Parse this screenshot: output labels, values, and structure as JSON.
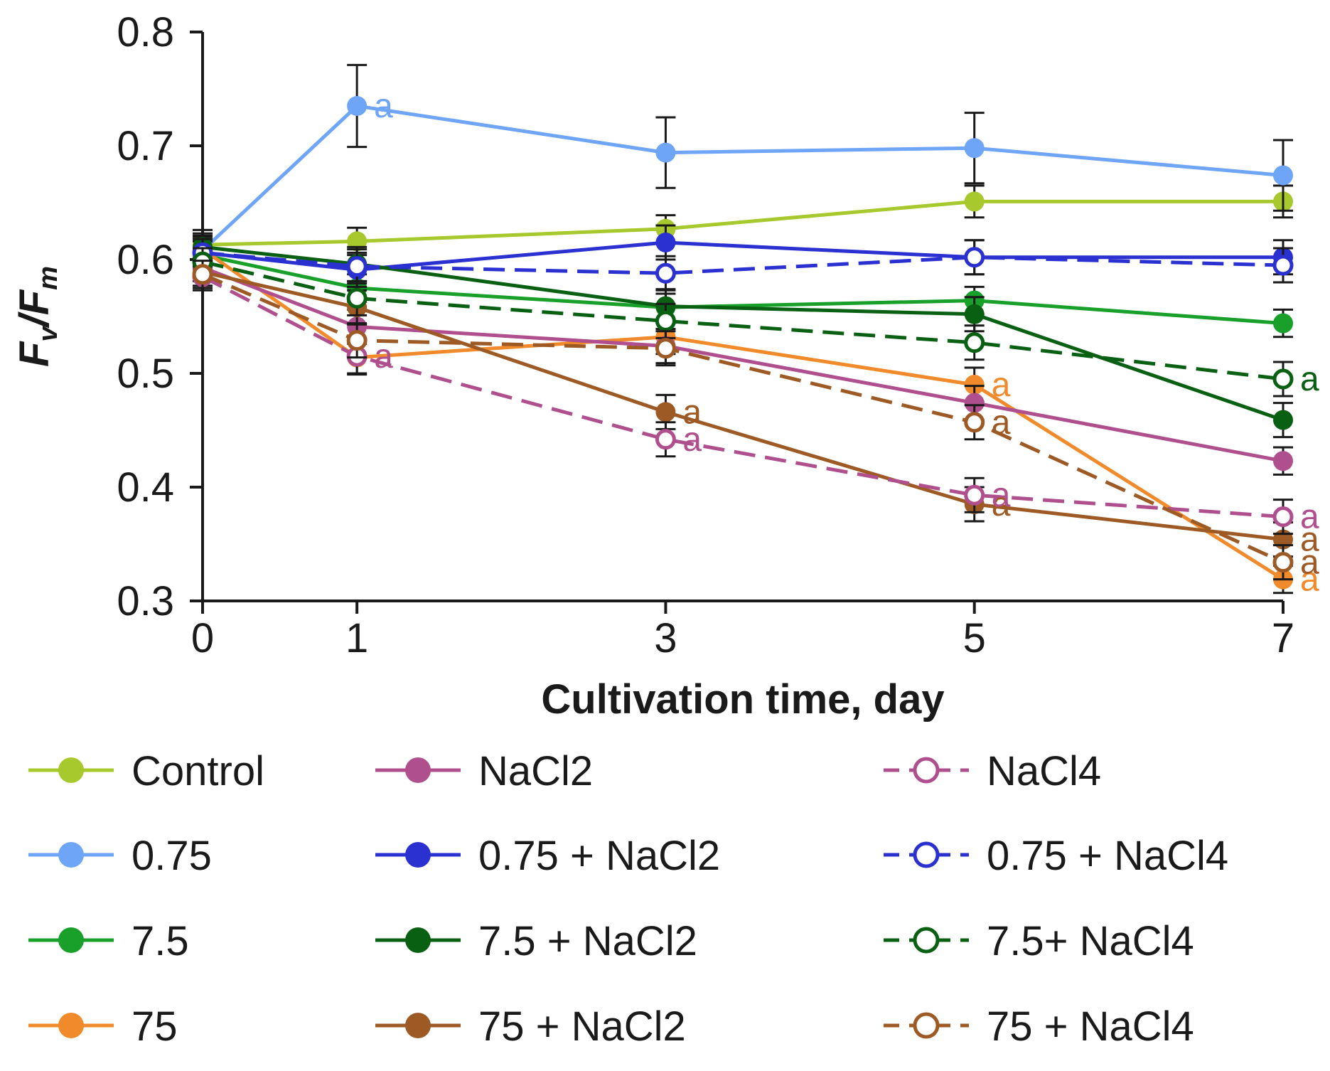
{
  "chart_data": {
    "type": "line",
    "title": "",
    "xlabel": "Cultivation time, day",
    "ylabel": {
      "main1": "F",
      "sub1": "v",
      "slash": "/",
      "main2": "F",
      "sub2": "m"
    },
    "x": [
      0,
      1,
      3,
      5,
      7
    ],
    "x_tick_labels": [
      "0",
      "1",
      "3",
      "5",
      "7"
    ],
    "ylim": [
      0.3,
      0.8
    ],
    "y_ticks": [
      0.3,
      0.4,
      0.5,
      0.6,
      0.7,
      0.8
    ],
    "y_tick_labels": [
      "0.3",
      "0.4",
      "0.5",
      "0.6",
      "0.7",
      "0.8"
    ],
    "grid": false,
    "legend_position": "bottom",
    "series": [
      {
        "name": "Control",
        "color": "#a8c92e",
        "dashed": false,
        "hollow": false,
        "values": [
          0.613,
          0.616,
          0.627,
          0.651,
          0.651
        ],
        "errors": [
          0.013,
          0.012,
          0.012,
          0.014,
          0.014
        ],
        "sig": [
          "",
          "",
          "",
          "",
          ""
        ]
      },
      {
        "name": "0.75",
        "color": "#6ea5f7",
        "dashed": false,
        "hollow": false,
        "values": [
          0.608,
          0.735,
          0.694,
          0.698,
          0.674
        ],
        "errors": [
          0.012,
          0.036,
          0.031,
          0.031,
          0.031
        ],
        "sig": [
          "",
          "a",
          "",
          "",
          ""
        ]
      },
      {
        "name": "7.5",
        "color": "#18a02a",
        "dashed": false,
        "hollow": false,
        "values": [
          0.604,
          0.575,
          0.558,
          0.564,
          0.544
        ],
        "errors": [
          0.012,
          0.012,
          0.012,
          0.012,
          0.012
        ],
        "sig": [
          "",
          "",
          "",
          "",
          ""
        ]
      },
      {
        "name": "75",
        "color": "#f18a2a",
        "dashed": false,
        "hollow": false,
        "values": [
          0.609,
          0.514,
          0.532,
          0.49,
          0.319
        ],
        "errors": [
          0.012,
          0.015,
          0.015,
          0.015,
          0.012
        ],
        "sig": [
          "",
          "",
          "",
          "a",
          "a"
        ]
      },
      {
        "name": "NaCl2",
        "color": "#b04f8d",
        "dashed": false,
        "hollow": false,
        "values": [
          0.593,
          0.541,
          0.524,
          0.474,
          0.423
        ],
        "errors": [
          0.012,
          0.015,
          0.015,
          0.015,
          0.012
        ],
        "sig": [
          "",
          "",
          "",
          "",
          ""
        ]
      },
      {
        "name": "0.75 + NaCl2",
        "color": "#2b31d0",
        "dashed": false,
        "hollow": false,
        "values": [
          0.606,
          0.591,
          0.615,
          0.602,
          0.602
        ],
        "errors": [
          0.012,
          0.015,
          0.015,
          0.015,
          0.015
        ],
        "sig": [
          "",
          "",
          "",
          "",
          ""
        ]
      },
      {
        "name": "7.5 + NaCl2",
        "color": "#0a6012",
        "dashed": false,
        "hollow": false,
        "values": [
          0.611,
          0.596,
          0.559,
          0.552,
          0.459
        ],
        "errors": [
          0.012,
          0.015,
          0.015,
          0.015,
          0.015
        ],
        "sig": [
          "",
          "",
          "",
          "",
          ""
        ]
      },
      {
        "name": "75 + NaCl2",
        "color": "#9e5a25",
        "dashed": false,
        "hollow": false,
        "values": [
          0.589,
          0.558,
          0.466,
          0.385,
          0.354
        ],
        "errors": [
          0.012,
          0.015,
          0.015,
          0.015,
          0.015
        ],
        "sig": [
          "",
          "",
          "a",
          "a",
          "a"
        ]
      },
      {
        "name": "NaCl4",
        "color": "#b04f8d",
        "dashed": true,
        "hollow": true,
        "values": [
          0.585,
          0.515,
          0.442,
          0.393,
          0.374
        ],
        "errors": [
          0.012,
          0.015,
          0.015,
          0.015,
          0.015
        ],
        "sig": [
          "",
          "a",
          "a",
          "a",
          "a"
        ]
      },
      {
        "name": "0.75 + NaCl4",
        "color": "#2b31d0",
        "dashed": true,
        "hollow": true,
        "values": [
          0.606,
          0.594,
          0.588,
          0.602,
          0.595
        ],
        "errors": [
          0.012,
          0.015,
          0.015,
          0.015,
          0.015
        ],
        "sig": [
          "",
          "",
          "",
          "",
          ""
        ]
      },
      {
        "name": "7.5+ NaCl4",
        "color": "#0a6012",
        "dashed": true,
        "hollow": true,
        "values": [
          0.598,
          0.566,
          0.546,
          0.527,
          0.495
        ],
        "errors": [
          0.012,
          0.015,
          0.015,
          0.015,
          0.015
        ],
        "sig": [
          "",
          "",
          "",
          "",
          "a"
        ]
      },
      {
        "name": "75 + NaCl4",
        "color": "#9e5a25",
        "dashed": true,
        "hollow": true,
        "values": [
          0.587,
          0.529,
          0.522,
          0.457,
          0.334
        ],
        "errors": [
          0.012,
          0.015,
          0.015,
          0.015,
          0.015
        ],
        "sig": [
          "",
          "",
          "",
          "a",
          "a"
        ]
      }
    ]
  }
}
